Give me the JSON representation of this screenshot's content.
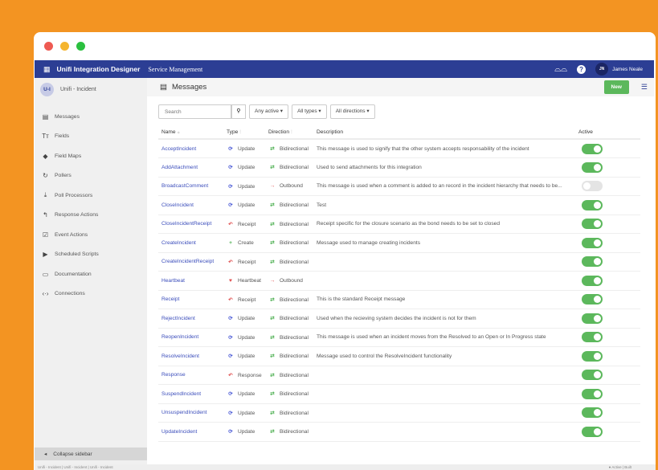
{
  "window": {
    "lights": [
      "#ee5a52",
      "#f5b52e",
      "#2bc03f"
    ]
  },
  "nav": {
    "app_title": "Unifi Integration Designer",
    "section": "Service Management",
    "user_initials": "JN",
    "user_name": "James Neale",
    "help": "?",
    "brand_color": "#2c3e94"
  },
  "sidebar": {
    "project_initials": "U-I",
    "project_name": "Unifi - Incident",
    "items": [
      {
        "label": "Messages",
        "icon": "▤"
      },
      {
        "label": "Fields",
        "icon": "Tт"
      },
      {
        "label": "Field Maps",
        "icon": "◆"
      },
      {
        "label": "Pollers",
        "icon": "↻"
      },
      {
        "label": "Poll Processors",
        "icon": "⤓"
      },
      {
        "label": "Response Actions",
        "icon": "↰"
      },
      {
        "label": "Event Actions",
        "icon": "☑"
      },
      {
        "label": "Scheduled Scripts",
        "icon": "▶"
      },
      {
        "label": "Documentation",
        "icon": "▭"
      },
      {
        "label": "Connections",
        "icon": "‹·›"
      }
    ],
    "collapse_label": "Collapse sidebar"
  },
  "status_bar": {
    "left": "Unifi - Incident | Unifi - Incident | Unifi - Incident",
    "right": "● Active | Built"
  },
  "main": {
    "title": "Messages",
    "new_label": "New",
    "search_placeholder": "Search",
    "filters": [
      "Any active ▾",
      "All types ▾",
      "All directions ▾"
    ],
    "columns": {
      "name": "Name",
      "type": "Type",
      "direction": "Direction",
      "description": "Description",
      "active": "Active"
    },
    "rows": [
      {
        "name": "AcceptIncident",
        "type": "Update",
        "direction": "Bidirectional",
        "description": "This message is used to signify that the other system accepts responsability of the incident",
        "active": true
      },
      {
        "name": "AddAttachment",
        "type": "Update",
        "direction": "Bidirectional",
        "description": "Used to send attachments for this integration",
        "active": true
      },
      {
        "name": "BroadcastComment",
        "type": "Update",
        "direction": "Outbound",
        "description": "This message is used when a comment is added to an record in the incident hierarchy that needs to be...",
        "active": false
      },
      {
        "name": "CloseIncident",
        "type": "Update",
        "direction": "Bidirectional",
        "description": "Test",
        "active": true
      },
      {
        "name": "CloseIncidentReceipt",
        "type": "Receipt",
        "direction": "Bidirectional",
        "description": "Receipt specific for the closure scenario as the bond needs to be set to closed",
        "active": true
      },
      {
        "name": "CreateIncident",
        "type": "Create",
        "direction": "Bidirectional",
        "description": "Message used to manage creating incidents",
        "active": true
      },
      {
        "name": "CreateIncidentReceipt",
        "type": "Receipt",
        "direction": "Bidirectional",
        "description": "",
        "active": true
      },
      {
        "name": "Heartbeat",
        "type": "Heartbeat",
        "direction": "Outbound",
        "description": "",
        "active": true
      },
      {
        "name": "Receipt",
        "type": "Receipt",
        "direction": "Bidirectional",
        "description": "This is the standard Receipt message",
        "active": true
      },
      {
        "name": "RejectIncident",
        "type": "Update",
        "direction": "Bidirectional",
        "description": "Used when the recieving system decides the incident is not for them",
        "active": true
      },
      {
        "name": "ReopenIncident",
        "type": "Update",
        "direction": "Bidirectional",
        "description": "This message is used when an incident moves from the Resolved to an Open or In Progress state",
        "active": true
      },
      {
        "name": "ResolveIncident",
        "type": "Update",
        "direction": "Bidirectional",
        "description": "Message used to control the ResolveIncident functionality",
        "active": true
      },
      {
        "name": "Response",
        "type": "Response",
        "direction": "Bidirectional",
        "description": "",
        "active": true
      },
      {
        "name": "SuspendIncident",
        "type": "Update",
        "direction": "Bidirectional",
        "description": "",
        "active": true
      },
      {
        "name": "UnsuspendIncident",
        "type": "Update",
        "direction": "Bidirectional",
        "description": "",
        "active": true
      },
      {
        "name": "UpdateIncident",
        "type": "Update",
        "direction": "Bidirectional",
        "description": "",
        "active": true
      }
    ]
  }
}
